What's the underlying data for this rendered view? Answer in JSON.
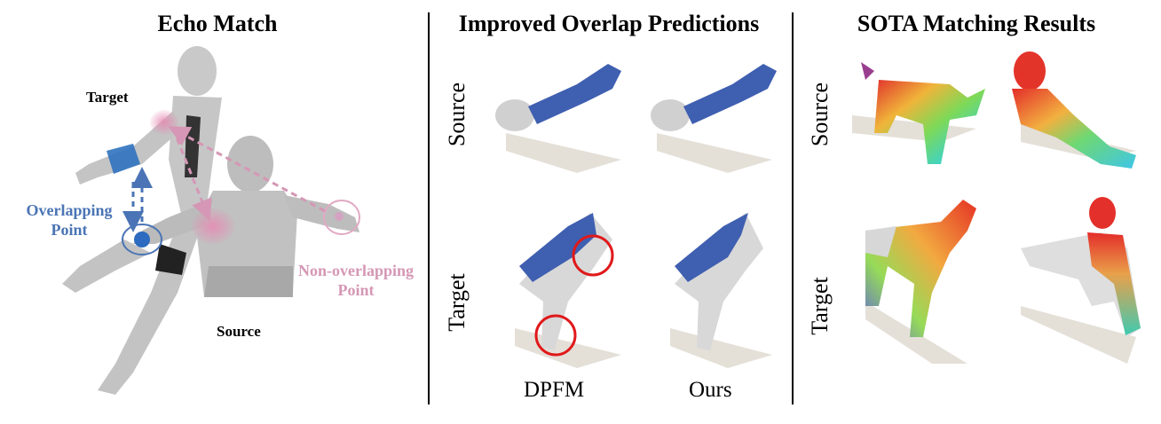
{
  "panels": {
    "echo": {
      "title": "Echo Match",
      "target_label": "Target",
      "source_label": "Source",
      "overlap_label": [
        "Overlapping",
        "Point"
      ],
      "nonoverlap_label": [
        "Non-overlapping",
        "Point"
      ]
    },
    "overlap": {
      "title": "Improved Overlap Predictions",
      "row_source": "Source",
      "row_target": "Target",
      "col_dpfm": "DPFM",
      "col_ours": "Ours"
    },
    "sota": {
      "title": "SOTA Matching Results",
      "row_source": "Source",
      "row_target": "Target"
    }
  },
  "colors": {
    "overlap_blue": "#4a74b5",
    "nonoverlap_pink": "#d597b5",
    "mesh_grey": "#c8c8c8",
    "highlight_blue": "#3f5fb0",
    "circle_red": "#e0191b"
  }
}
